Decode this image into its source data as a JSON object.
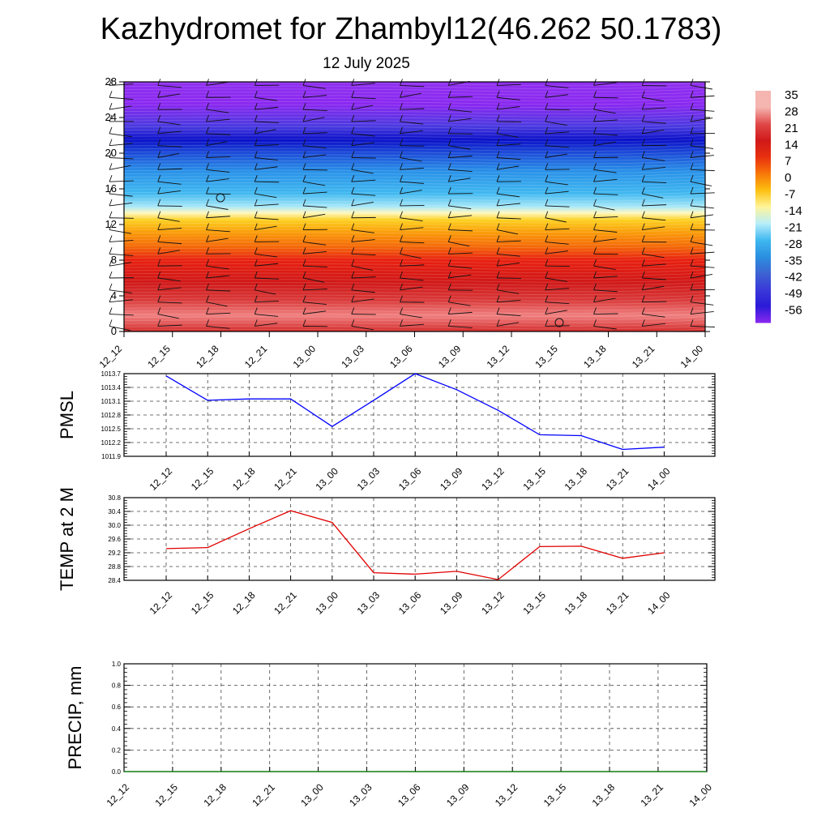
{
  "title": "Kazhydromet for Zhambyl12(46.262 50.1783)",
  "subtitle": "12 July 2025",
  "chart_data": [
    {
      "type": "heatmap",
      "name": "vertical temperature and wind section",
      "x_ticks": [
        "12_12",
        "12_15",
        "12_18",
        "12_21",
        "13_00",
        "13_03",
        "13_06",
        "13_09",
        "13_12",
        "13_15",
        "13_18",
        "13_21",
        "14_00"
      ],
      "y_ticks": [
        0,
        4,
        8,
        12,
        16,
        20,
        24,
        28
      ],
      "ylim": [
        0,
        28
      ],
      "colorbar": {
        "labels": [
          "35",
          "28",
          "21",
          "14",
          "7",
          "0",
          "-7",
          "-14",
          "-21",
          "-28",
          "-35",
          "-42",
          "-49",
          "-56"
        ],
        "colors": [
          "#f5b5b0",
          "#e04848",
          "#d01818",
          "#e83010",
          "#f87808",
          "#fcc010",
          "#fff59a",
          "#b8eefa",
          "#40b8f0",
          "#2a90e0",
          "#3c64d2",
          "#3a3ad8",
          "#2a1ad8",
          "#8a28f0"
        ]
      },
      "bands": [
        {
          "y": 0,
          "color": "#d42a2a"
        },
        {
          "y": 1.8,
          "color": "#f08080"
        },
        {
          "y": 3.5,
          "color": "#da3a3a"
        },
        {
          "y": 5.5,
          "color": "#d01818"
        },
        {
          "y": 8,
          "color": "#e82010"
        },
        {
          "y": 9.5,
          "color": "#f46808"
        },
        {
          "y": 11,
          "color": "#fa9808"
        },
        {
          "y": 12.5,
          "color": "#fcd020"
        },
        {
          "y": 13.3,
          "color": "#fff8c0"
        },
        {
          "y": 14,
          "color": "#a8e8f8"
        },
        {
          "y": 15.5,
          "color": "#40b8f0"
        },
        {
          "y": 18,
          "color": "#2890e8"
        },
        {
          "y": 20,
          "color": "#1c4cd8"
        },
        {
          "y": 21.5,
          "color": "#0a10c8"
        },
        {
          "y": 23,
          "color": "#4a3ae0"
        },
        {
          "y": 25.5,
          "color": "#8a28f0"
        },
        {
          "y": 28,
          "color": "#9030f0"
        }
      ]
    },
    {
      "type": "line",
      "ylabel": "PMSL",
      "categories": [
        "12_12",
        "12_15",
        "12_18",
        "12_21",
        "13_00",
        "13_03",
        "13_06",
        "13_09",
        "13_12",
        "13_15",
        "13_18",
        "13_21",
        "14_00"
      ],
      "y_ticks": [
        1011.9,
        1012.2,
        1012.5,
        1012.8,
        1013.1,
        1013.4,
        1013.7
      ],
      "y_tick_labels": [
        "1011.9",
        "1012.2",
        "1012.5",
        "1012.8",
        "1013.1",
        "1013.4",
        "1013.7"
      ],
      "ylim": [
        1011.9,
        1013.7
      ],
      "values": [
        1013.65,
        1013.12,
        1013.15,
        1013.15,
        1012.55,
        1013.12,
        1013.7,
        1013.35,
        1012.9,
        1012.37,
        1012.35,
        1012.05,
        1012.1
      ],
      "color": "#0000ff"
    },
    {
      "type": "line",
      "ylabel": "TEMP at 2 M",
      "categories": [
        "12_12",
        "12_15",
        "12_18",
        "12_21",
        "13_00",
        "13_03",
        "13_06",
        "13_09",
        "13_12",
        "13_15",
        "13_18",
        "13_21",
        "14_00"
      ],
      "y_ticks": [
        28.4,
        28.8,
        29.2,
        29.6,
        30.0,
        30.4,
        30.8
      ],
      "y_tick_labels": [
        "28.4",
        "28.8",
        "29.2",
        "29.6",
        "30.0",
        "30.4",
        "30.8"
      ],
      "ylim": [
        28.4,
        30.8
      ],
      "values": [
        29.32,
        29.35,
        29.9,
        30.42,
        30.08,
        28.62,
        28.58,
        28.66,
        28.42,
        29.38,
        29.39,
        29.04,
        29.2
      ],
      "color": "#e00000"
    },
    {
      "type": "line",
      "ylabel": "PRECIP, mm",
      "categories": [
        "12_12",
        "12_15",
        "12_18",
        "12_21",
        "13_00",
        "13_03",
        "13_06",
        "13_09",
        "13_12",
        "13_15",
        "13_18",
        "13_21",
        "14_00"
      ],
      "y_ticks": [
        0.0,
        0.2,
        0.4,
        0.6,
        0.8,
        1.0
      ],
      "y_tick_labels": [
        "0.0",
        "0.2",
        "0.4",
        "0.6",
        "0.8",
        "1.0"
      ],
      "ylim": [
        0,
        1
      ],
      "values": [
        0,
        0,
        0,
        0,
        0,
        0,
        0,
        0,
        0,
        0,
        0,
        0,
        0
      ],
      "color": "#008000"
    }
  ]
}
